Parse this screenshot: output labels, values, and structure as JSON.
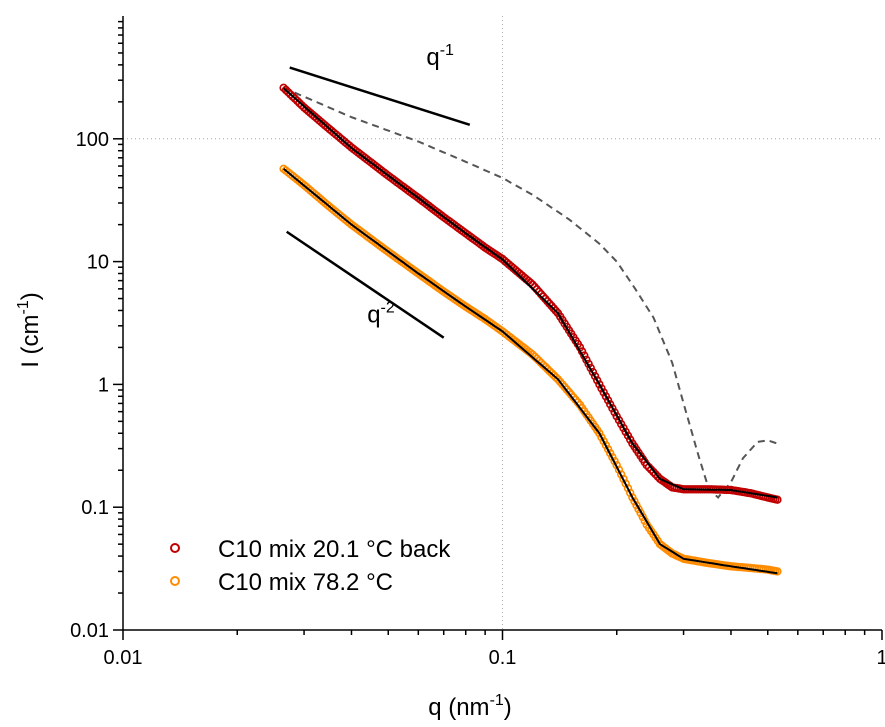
{
  "chart_data": {
    "type": "scatter",
    "xlabel": "q (nm",
    "xlabel_sup": "-1",
    "xlabel_end": ")",
    "ylabel": "I (cm",
    "ylabel_sup": "-1",
    "ylabel_end": ")",
    "xscale": "log",
    "yscale": "log",
    "xlim": [
      0.01,
      1
    ],
    "ylim": [
      0.01,
      1000
    ],
    "grid": "major dotted at 0.1 (x) and 100 (y)",
    "legend_position": "bottom-left",
    "xticks": [
      {
        "value": 0.01,
        "label": "0.01"
      },
      {
        "value": 0.1,
        "label": "0.1"
      },
      {
        "value": 1,
        "label": "1"
      }
    ],
    "yticks": [
      {
        "value": 0.01,
        "label": "0.01"
      },
      {
        "value": 0.1,
        "label": "0.1"
      },
      {
        "value": 1,
        "label": "1"
      },
      {
        "value": 10,
        "label": "10"
      },
      {
        "value": 100,
        "label": "100"
      }
    ],
    "series": [
      {
        "name": "C10 mix 20.1 °C back",
        "color": "#c00000",
        "marker": "open-circle",
        "points": [
          [
            0.0265,
            260
          ],
          [
            0.03,
            180
          ],
          [
            0.035,
            120
          ],
          [
            0.04,
            85
          ],
          [
            0.05,
            50
          ],
          [
            0.06,
            33
          ],
          [
            0.07,
            23
          ],
          [
            0.08,
            17
          ],
          [
            0.09,
            13
          ],
          [
            0.1,
            10.5
          ],
          [
            0.12,
            6.5
          ],
          [
            0.14,
            3.8
          ],
          [
            0.16,
            2.0
          ],
          [
            0.18,
            1.0
          ],
          [
            0.2,
            0.55
          ],
          [
            0.22,
            0.33
          ],
          [
            0.24,
            0.22
          ],
          [
            0.26,
            0.17
          ],
          [
            0.28,
            0.145
          ],
          [
            0.3,
            0.14
          ],
          [
            0.35,
            0.14
          ],
          [
            0.4,
            0.138
          ],
          [
            0.45,
            0.13
          ],
          [
            0.5,
            0.12
          ],
          [
            0.53,
            0.115
          ]
        ],
        "fit": [
          [
            0.0265,
            258
          ],
          [
            0.04,
            84
          ],
          [
            0.06,
            33
          ],
          [
            0.08,
            17
          ],
          [
            0.1,
            10.4
          ],
          [
            0.14,
            3.8
          ],
          [
            0.18,
            1.0
          ],
          [
            0.22,
            0.33
          ],
          [
            0.26,
            0.17
          ],
          [
            0.3,
            0.14
          ],
          [
            0.4,
            0.138
          ],
          [
            0.53,
            0.12
          ]
        ]
      },
      {
        "name": "C10 mix 78.2 °C",
        "color": "#ff8c00",
        "marker": "open-circle",
        "points": [
          [
            0.0265,
            57
          ],
          [
            0.03,
            42
          ],
          [
            0.035,
            28
          ],
          [
            0.04,
            20
          ],
          [
            0.05,
            12
          ],
          [
            0.06,
            8
          ],
          [
            0.07,
            5.7
          ],
          [
            0.08,
            4.3
          ],
          [
            0.09,
            3.4
          ],
          [
            0.1,
            2.7
          ],
          [
            0.12,
            1.75
          ],
          [
            0.14,
            1.1
          ],
          [
            0.16,
            0.68
          ],
          [
            0.18,
            0.4
          ],
          [
            0.2,
            0.22
          ],
          [
            0.22,
            0.12
          ],
          [
            0.24,
            0.072
          ],
          [
            0.26,
            0.05
          ],
          [
            0.28,
            0.042
          ],
          [
            0.3,
            0.038
          ],
          [
            0.35,
            0.035
          ],
          [
            0.4,
            0.033
          ],
          [
            0.45,
            0.032
          ],
          [
            0.5,
            0.031
          ],
          [
            0.53,
            0.03
          ]
        ],
        "fit": [
          [
            0.0265,
            57
          ],
          [
            0.04,
            20
          ],
          [
            0.06,
            8
          ],
          [
            0.08,
            4.3
          ],
          [
            0.1,
            2.7
          ],
          [
            0.14,
            1.1
          ],
          [
            0.18,
            0.4
          ],
          [
            0.22,
            0.12
          ],
          [
            0.26,
            0.05
          ],
          [
            0.3,
            0.038
          ],
          [
            0.4,
            0.033
          ],
          [
            0.53,
            0.029
          ]
        ]
      }
    ],
    "dashed_curve": [
      [
        0.0265,
        260
      ],
      [
        0.04,
        150
      ],
      [
        0.06,
        95
      ],
      [
        0.08,
        65
      ],
      [
        0.1,
        48
      ],
      [
        0.12,
        35
      ],
      [
        0.15,
        22
      ],
      [
        0.18,
        14
      ],
      [
        0.2,
        10
      ],
      [
        0.22,
        6.5
      ],
      [
        0.25,
        3.5
      ],
      [
        0.28,
        1.5
      ],
      [
        0.3,
        0.7
      ],
      [
        0.33,
        0.25
      ],
      [
        0.35,
        0.14
      ],
      [
        0.37,
        0.12
      ],
      [
        0.4,
        0.16
      ],
      [
        0.43,
        0.25
      ],
      [
        0.47,
        0.34
      ],
      [
        0.5,
        0.35
      ],
      [
        0.53,
        0.33
      ]
    ],
    "annotations": [
      {
        "text": "q",
        "sup": "-1",
        "line": [
          [
            0.0275,
            380
          ],
          [
            0.082,
            130
          ]
        ],
        "at": [
          0.063,
          400
        ]
      },
      {
        "text": "q",
        "sup": "-2",
        "line": [
          [
            0.027,
            17.5
          ],
          [
            0.07,
            2.4
          ]
        ],
        "at": [
          0.044,
          3.2
        ]
      }
    ]
  }
}
